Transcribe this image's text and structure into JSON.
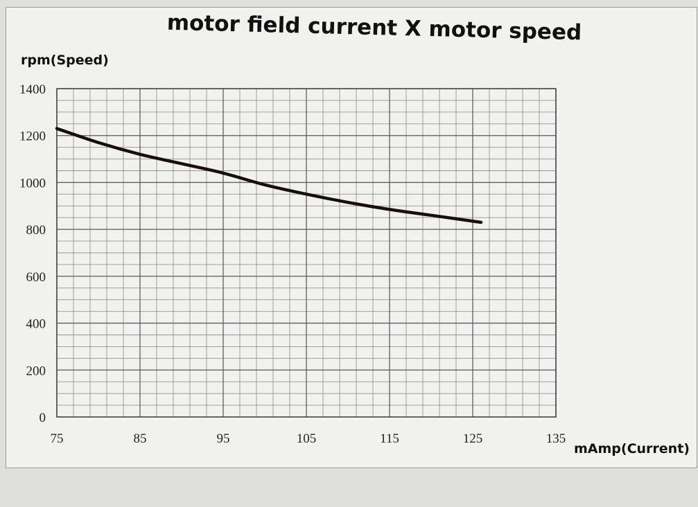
{
  "chart_data": {
    "type": "line",
    "title": "motor field current X motor speed",
    "xlabel": "mAmp(Current)",
    "ylabel": "rpm(Speed)",
    "xlim": [
      75,
      135
    ],
    "ylim": [
      0,
      1400
    ],
    "x_ticks": [
      "75",
      "85",
      "95",
      "105",
      "115",
      "125",
      "135"
    ],
    "y_ticks": [
      "0",
      "200",
      "400",
      "600",
      "800",
      "1000",
      "1200",
      "1400"
    ],
    "grid": true,
    "series": [
      {
        "color": "#1a0d10",
        "x": [
          75,
          80,
          85,
          90,
          95,
          100,
          105,
          110,
          115,
          120,
          126
        ],
        "y": [
          1230,
          1170,
          1120,
          1080,
          1040,
          990,
          950,
          915,
          885,
          860,
          830
        ]
      }
    ]
  }
}
